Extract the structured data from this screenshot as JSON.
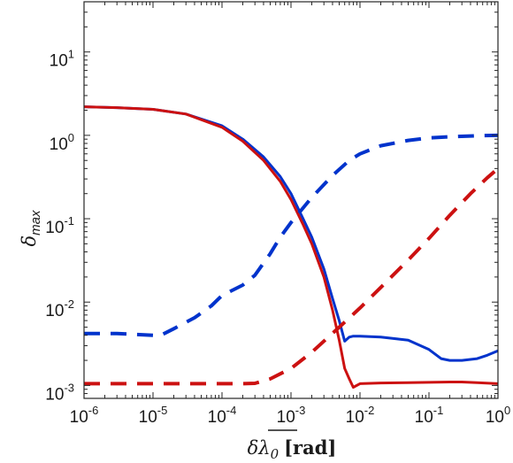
{
  "chart_data": {
    "type": "line",
    "xlabel": "δλ₀ [rad]",
    "xlabel_main": "δλ",
    "xlabel_sub": "0",
    "xlabel_unit": "[rad]",
    "ylabel": "δ_max",
    "ylabel_main": "δ",
    "ylabel_sub": "max",
    "xscale": "log",
    "yscale": "log",
    "xlim": [
      1e-06,
      1
    ],
    "ylim": [
      0.0007,
      40
    ],
    "grid": false,
    "legend": "none",
    "x_ticks": [
      {
        "mant": "10",
        "exp": "-6",
        "value": 1e-06
      },
      {
        "mant": "10",
        "exp": "-5",
        "value": 1e-05
      },
      {
        "mant": "10",
        "exp": "-4",
        "value": 0.0001
      },
      {
        "mant": "10",
        "exp": "-3",
        "value": 0.001
      },
      {
        "mant": "10",
        "exp": "-2",
        "value": 0.01
      },
      {
        "mant": "10",
        "exp": "-1",
        "value": 0.1
      },
      {
        "mant": "10",
        "exp": "0",
        "value": 1
      }
    ],
    "y_ticks": [
      {
        "mant": "10",
        "exp": "-3",
        "value": 0.001
      },
      {
        "mant": "10",
        "exp": "-2",
        "value": 0.01
      },
      {
        "mant": "10",
        "exp": "-1",
        "value": 0.1
      },
      {
        "mant": "10",
        "exp": "0",
        "value": 1
      },
      {
        "mant": "10",
        "exp": "1",
        "value": 10
      }
    ],
    "series": [
      {
        "color": "#0033cc",
        "style": "solid",
        "x": [
          1e-06,
          3e-06,
          1e-05,
          3e-05,
          0.0001,
          0.0002,
          0.0004,
          0.0007,
          0.001,
          0.0015,
          0.002,
          0.003,
          0.004,
          0.005,
          0.006,
          0.007,
          0.008,
          0.01,
          0.02,
          0.05,
          0.1,
          0.15,
          0.2,
          0.3,
          0.5,
          0.7,
          1
        ],
        "y": [
          2.2,
          2.15,
          2.05,
          1.8,
          1.3,
          0.9,
          0.55,
          0.32,
          0.2,
          0.1,
          0.06,
          0.025,
          0.011,
          0.006,
          0.0034,
          0.0038,
          0.0039,
          0.0039,
          0.0038,
          0.0035,
          0.0027,
          0.0021,
          0.002,
          0.002,
          0.0021,
          0.0023,
          0.0026
        ]
      },
      {
        "color": "#cc1111",
        "style": "solid",
        "x": [
          1e-06,
          3e-06,
          1e-05,
          3e-05,
          0.0001,
          0.0002,
          0.0004,
          0.0007,
          0.001,
          0.0015,
          0.002,
          0.003,
          0.004,
          0.005,
          0.006,
          0.007,
          0.008,
          0.01,
          0.02,
          0.05,
          0.1,
          0.2,
          0.3,
          0.5,
          1
        ],
        "y": [
          2.2,
          2.15,
          2.05,
          1.8,
          1.25,
          0.85,
          0.5,
          0.28,
          0.17,
          0.085,
          0.05,
          0.02,
          0.008,
          0.0035,
          0.0016,
          0.0012,
          0.00095,
          0.00105,
          0.00107,
          0.00108,
          0.00109,
          0.0011,
          0.0011,
          0.00108,
          0.00105
        ]
      },
      {
        "color": "#0033cc",
        "style": "dashed",
        "x": [
          1e-06,
          3e-06,
          1e-05,
          1.3e-05,
          2e-05,
          4e-05,
          7e-05,
          0.0001,
          0.0002,
          0.0003,
          0.0005,
          0.0007,
          0.001,
          0.002,
          0.004,
          0.007,
          0.01,
          0.02,
          0.05,
          0.1,
          0.2,
          0.5,
          1
        ],
        "y": [
          0.0042,
          0.0042,
          0.004,
          0.004,
          0.0048,
          0.0065,
          0.009,
          0.012,
          0.016,
          0.021,
          0.038,
          0.06,
          0.09,
          0.18,
          0.33,
          0.5,
          0.6,
          0.75,
          0.87,
          0.93,
          0.96,
          0.99,
          1.0
        ]
      },
      {
        "color": "#cc1111",
        "style": "dashed",
        "x": [
          1e-06,
          1e-05,
          0.0001,
          0.0002,
          0.0003,
          0.0005,
          0.001,
          0.002,
          0.005,
          0.01,
          0.02,
          0.05,
          0.1,
          0.2,
          0.4,
          0.7,
          1
        ],
        "y": [
          0.00105,
          0.00105,
          0.00105,
          0.00105,
          0.00106,
          0.0012,
          0.0016,
          0.0025,
          0.005,
          0.0085,
          0.015,
          0.032,
          0.058,
          0.11,
          0.2,
          0.31,
          0.4
        ]
      }
    ]
  }
}
